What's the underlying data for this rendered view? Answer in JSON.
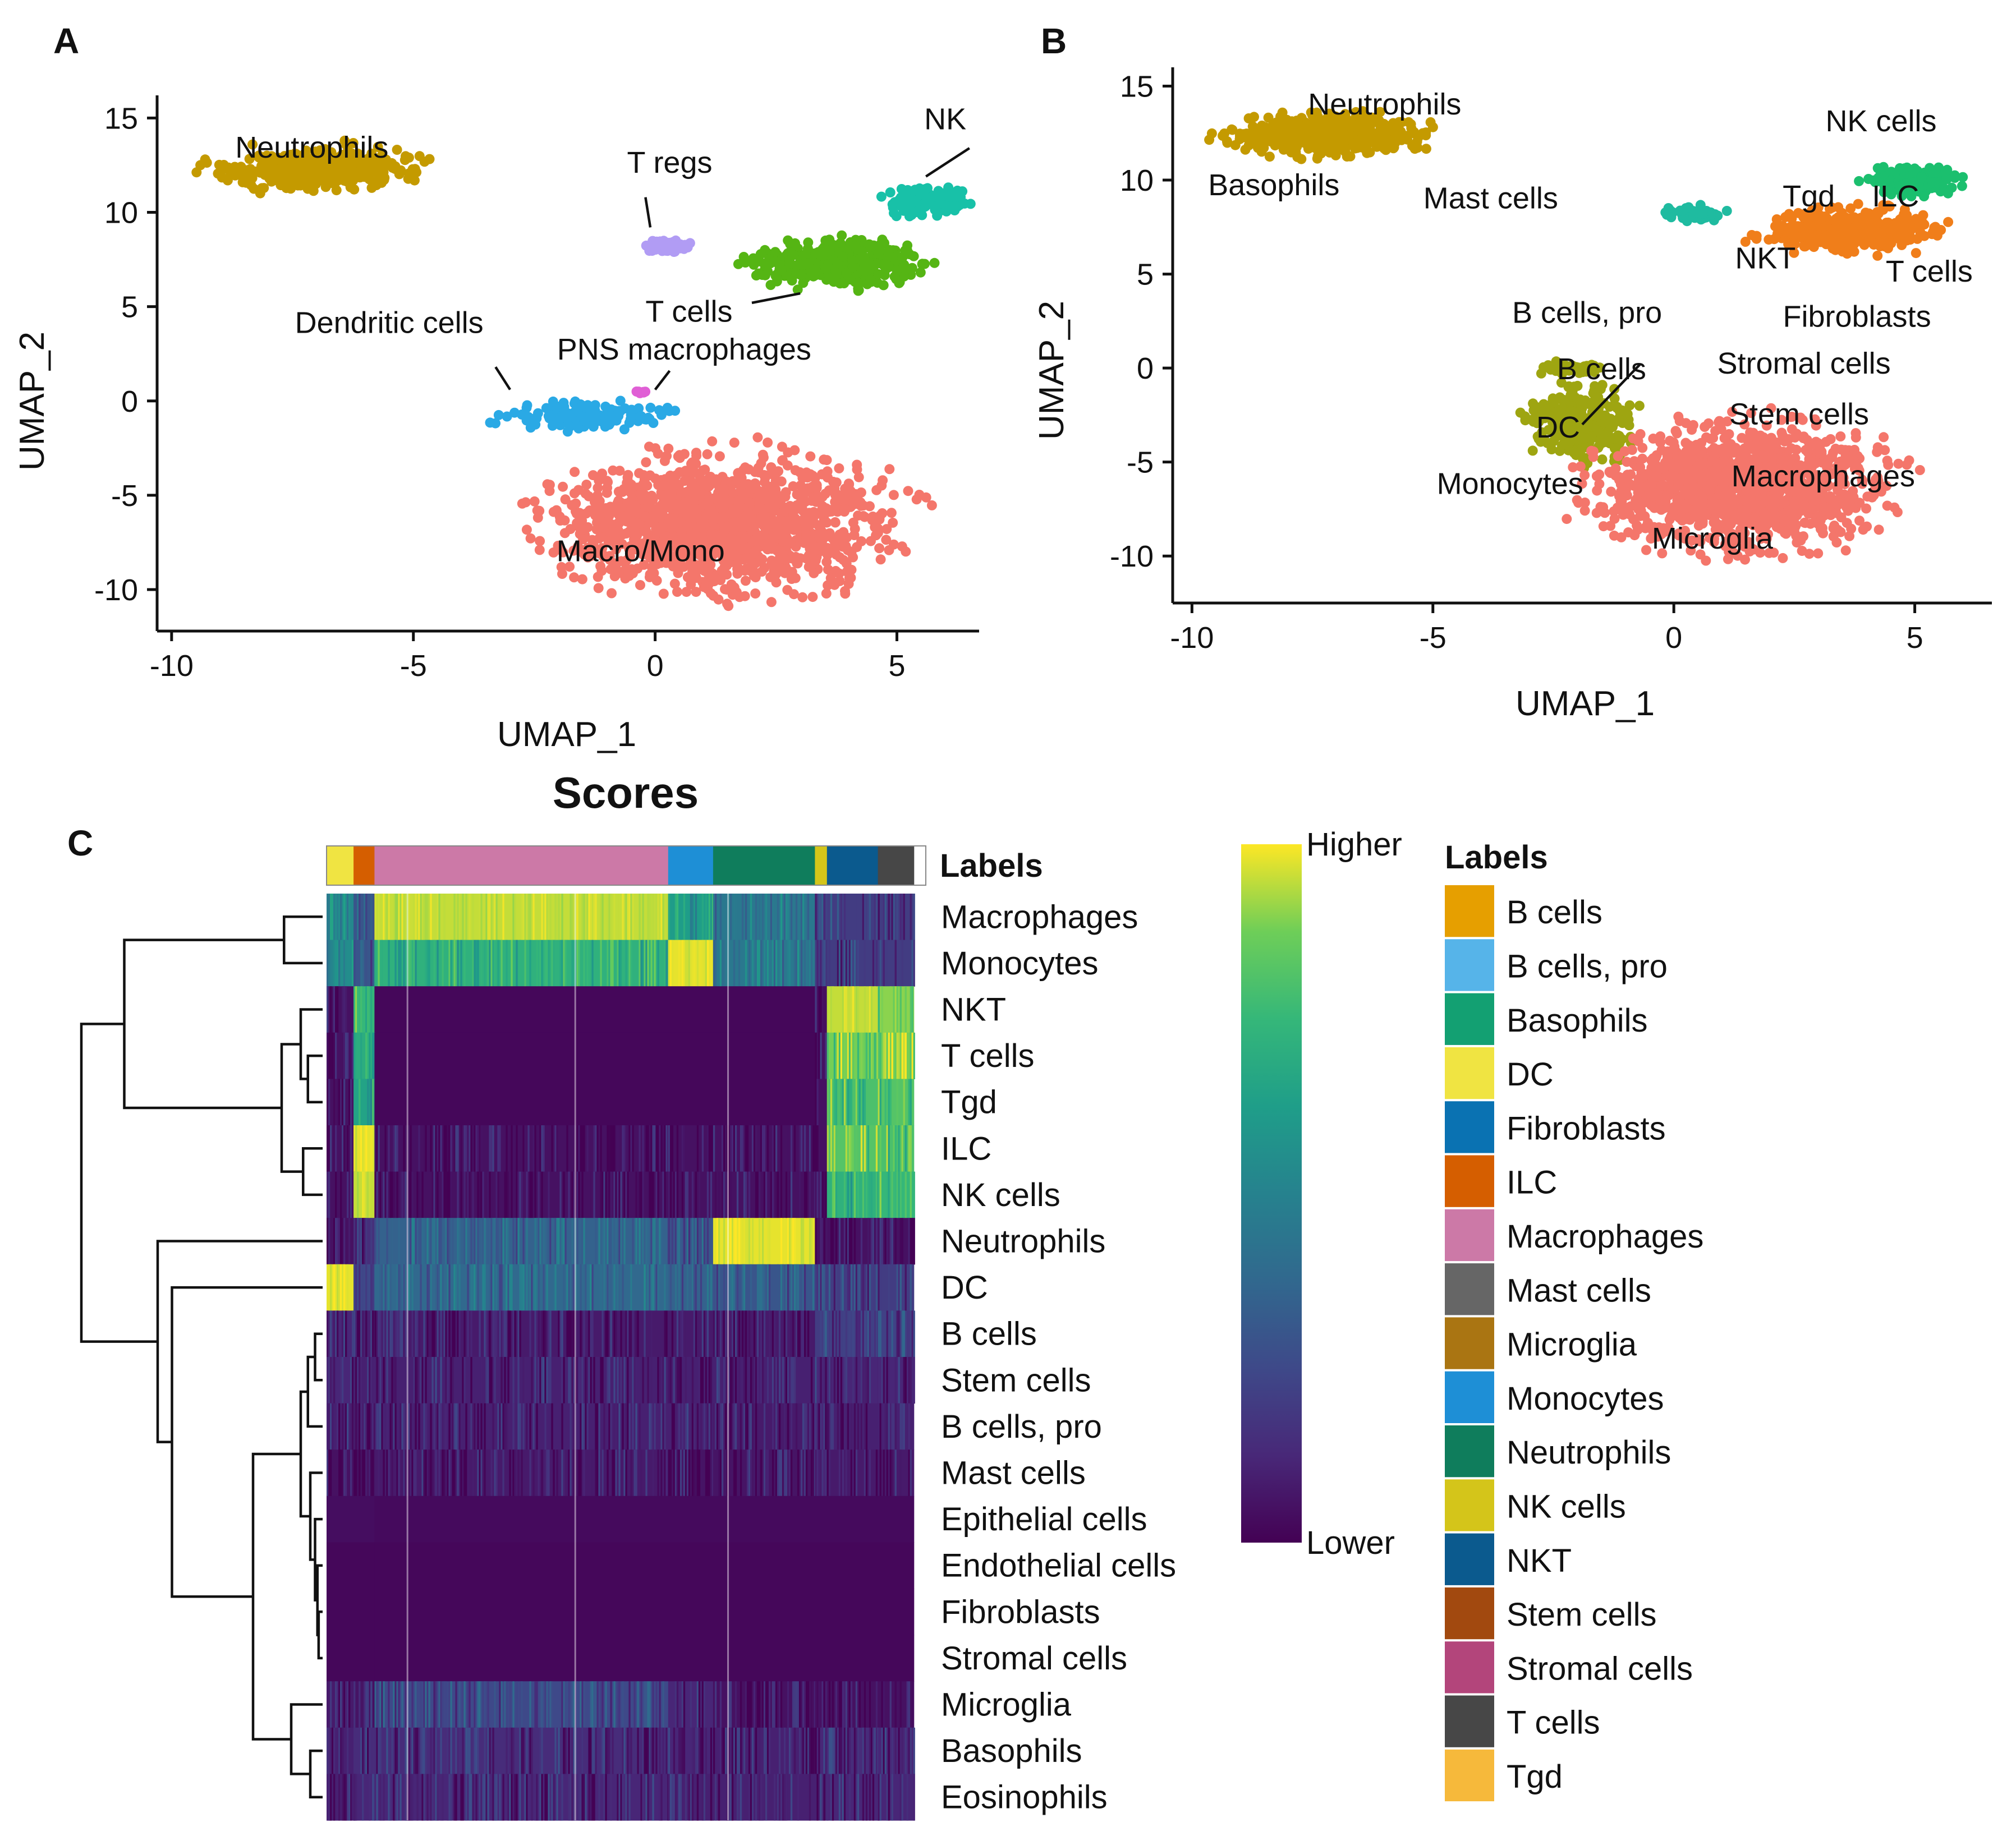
{
  "panels": {
    "a": "A",
    "b": "B",
    "c": "C"
  },
  "chart_data": [
    {
      "type": "scatter",
      "panel": "A",
      "xlabel": "UMAP_1",
      "ylabel": "UMAP_2",
      "xlim": [
        -10.3,
        6.7
      ],
      "ylim": [
        -12.2,
        16.2
      ],
      "xticks": [
        -10,
        -5,
        0,
        5
      ],
      "yticks": [
        15,
        10,
        5,
        0,
        -5,
        -10
      ],
      "clusters": [
        {
          "name": "Neutrophils",
          "color": "#c49a00",
          "label": "Neutrophils",
          "shape": "blob",
          "cx": -7.0,
          "cy": 12.3,
          "rx": 2.6,
          "ry": 1.4,
          "n": 420,
          "label_x": -7.1,
          "label_y": 12.9
        },
        {
          "name": "T regs",
          "color": "#b19cf4",
          "label": "T regs",
          "shape": "blob",
          "cx": 0.3,
          "cy": 8.2,
          "rx": 0.6,
          "ry": 0.45,
          "n": 60,
          "label_x": 0.3,
          "label_y": 12.1,
          "leader": [
            -0.2,
            10.8,
            -0.1,
            9.2
          ]
        },
        {
          "name": "T cells",
          "color": "#55b514",
          "label": "T cells",
          "shape": "blob",
          "cx": 3.8,
          "cy": 7.3,
          "rx": 2.2,
          "ry": 1.5,
          "n": 400,
          "label_x": 0.7,
          "label_y": 4.2,
          "leader": [
            2.0,
            5.2,
            3.0,
            5.7
          ]
        },
        {
          "name": "NK",
          "color": "#18c1a8",
          "label": "NK",
          "shape": "blob",
          "cx": 5.6,
          "cy": 10.6,
          "rx": 1.1,
          "ry": 1.0,
          "n": 120,
          "label_x": 6.0,
          "label_y": 14.4,
          "leader": [
            6.5,
            13.4,
            5.6,
            11.9
          ]
        },
        {
          "name": "Dendritic cells",
          "color": "#2aa9e5",
          "label": "Dendritic cells",
          "shape": "blob",
          "cx": -1.4,
          "cy": -0.8,
          "rx": 2.0,
          "ry": 0.9,
          "n": 160,
          "label_x": -5.5,
          "label_y": 3.6,
          "leader": [
            -3.3,
            1.8,
            -3.0,
            0.6
          ]
        },
        {
          "name": "PNS macrophages",
          "color": "#e05fd5",
          "label": "PNS macrophages",
          "shape": "blob",
          "cx": -0.3,
          "cy": 0.5,
          "rx": 0.15,
          "ry": 0.2,
          "n": 6,
          "label_x": 0.6,
          "label_y": 2.2,
          "leader": [
            0.3,
            1.6,
            0.0,
            0.6
          ]
        },
        {
          "name": "Macro/Mono",
          "color": "#f4766b",
          "label": "Macro/Mono",
          "shape": "blob",
          "cx": 1.4,
          "cy": -6.6,
          "rx": 4.2,
          "ry": 4.6,
          "n": 1400,
          "label_x": -0.3,
          "label_y": -8.5
        }
      ]
    },
    {
      "type": "scatter",
      "panel": "B",
      "xlabel": "UMAP_1",
      "ylabel": "UMAP_2",
      "xlim": [
        -10.4,
        6.6
      ],
      "ylim": [
        -12.5,
        16.0
      ],
      "xticks": [
        -10,
        -5,
        0,
        5
      ],
      "yticks": [
        15,
        10,
        5,
        0,
        -5,
        -10
      ],
      "clusters": [
        {
          "name": "Neutrophils",
          "color": "#c49a00",
          "shape": "blob",
          "cx": -7.2,
          "cy": 12.4,
          "rx": 2.6,
          "ry": 1.4,
          "n": 420
        },
        {
          "name": "T cells",
          "color": "#f07e1a",
          "shape": "blob",
          "cx": 3.7,
          "cy": 7.3,
          "rx": 2.2,
          "ry": 1.5,
          "n": 380
        },
        {
          "name": "NK cells",
          "color": "#1bbf6e",
          "shape": "blob",
          "cx": 5.0,
          "cy": 10.0,
          "rx": 1.2,
          "ry": 1.1,
          "n": 150
        },
        {
          "name": "ILC",
          "color": "#1fbba0",
          "shape": "blob",
          "cx": 0.4,
          "cy": 8.2,
          "rx": 0.7,
          "ry": 0.5,
          "n": 60
        },
        {
          "name": "Monocytes",
          "color": "#9ea511",
          "shape": "blob",
          "cx": -1.9,
          "cy": -3.0,
          "rx": 1.3,
          "ry": 2.5,
          "n": 260
        },
        {
          "name": "B cells, pro",
          "color": "#9ea511",
          "shape": "blob",
          "cx": -2.2,
          "cy": 0.0,
          "rx": 0.9,
          "ry": 0.4,
          "n": 50
        },
        {
          "name": "Microglia",
          "color": "#f4766b",
          "shape": "blob",
          "cx": 1.4,
          "cy": -6.4,
          "rx": 3.6,
          "ry": 4.2,
          "n": 1300
        }
      ],
      "labels": [
        {
          "text": "Neutrophils",
          "x": -6.0,
          "y": 13.5
        },
        {
          "text": "Basophils",
          "x": -8.3,
          "y": 9.2
        },
        {
          "text": "Mast cells",
          "x": -3.8,
          "y": 8.5
        },
        {
          "text": "NK cells",
          "x": 4.3,
          "y": 12.6
        },
        {
          "text": "Tgd",
          "x": 2.8,
          "y": 8.6
        },
        {
          "text": "ILC",
          "x": 4.6,
          "y": 8.6
        },
        {
          "text": "NKT",
          "x": 1.9,
          "y": 5.3
        },
        {
          "text": "T cells",
          "x": 5.3,
          "y": 4.6
        },
        {
          "text": "Fibroblasts",
          "x": 3.8,
          "y": 2.2
        },
        {
          "text": "B cells, pro",
          "x": -1.8,
          "y": 2.4
        },
        {
          "text": "Stromal cells",
          "x": 2.7,
          "y": -0.3
        },
        {
          "text": "B cells",
          "x": -1.5,
          "y": -0.6
        },
        {
          "text": "Stem cells",
          "x": 2.6,
          "y": -3.0
        },
        {
          "text": "DC",
          "x": -2.4,
          "y": -3.7
        },
        {
          "text": "Monocytes",
          "x": -3.4,
          "y": -6.7
        },
        {
          "text": "Macrophages",
          "x": 3.1,
          "y": -6.3
        },
        {
          "text": "Microglia",
          "x": 0.8,
          "y": -9.6
        }
      ],
      "leader": [
        -1.9,
        -3.0,
        -0.7,
        0.2
      ]
    },
    {
      "type": "heatmap",
      "panel": "C",
      "title": "Scores",
      "annotation_label": "Labels",
      "rows": [
        "Macrophages",
        "Monocytes",
        "NKT",
        "T cells",
        "Tgd",
        "ILC",
        "NK cells",
        "Neutrophils",
        "DC",
        "B cells",
        "Stem cells",
        "B cells, pro",
        "Mast cells",
        "Epithelial cells",
        "Endothelial cells",
        "Fibroblasts",
        "Stromal cells",
        "Microglia",
        "Basophils",
        "Eosinophils"
      ],
      "column_groups": [
        {
          "label": "DC",
          "fraction": 0.045
        },
        {
          "label": "ILC",
          "fraction": 0.035
        },
        {
          "label": "Macrophages",
          "fraction": 0.49
        },
        {
          "label": "Monocytes",
          "fraction": 0.075
        },
        {
          "label": "Neutrophils",
          "fraction": 0.17
        },
        {
          "label": "NK cells",
          "fraction": 0.02
        },
        {
          "label": "NKT",
          "fraction": 0.085
        },
        {
          "label": "T cells",
          "fraction": 0.06
        }
      ],
      "scores": [
        [
          0.55,
          0.3,
          0.95,
          0.62,
          0.45,
          0.2,
          0.2,
          0.2
        ],
        [
          0.55,
          0.3,
          0.72,
          0.98,
          0.45,
          0.2,
          0.2,
          0.2
        ],
        [
          0.05,
          0.75,
          0.02,
          0.02,
          0.02,
          0.05,
          0.95,
          0.9
        ],
        [
          0.05,
          0.7,
          0.02,
          0.02,
          0.02,
          0.05,
          0.88,
          0.88
        ],
        [
          0.05,
          0.65,
          0.02,
          0.02,
          0.02,
          0.05,
          0.8,
          0.82
        ],
        [
          0.05,
          0.98,
          0.05,
          0.05,
          0.05,
          0.05,
          0.82,
          0.8
        ],
        [
          0.05,
          0.95,
          0.05,
          0.05,
          0.05,
          0.05,
          0.72,
          0.75
        ],
        [
          0.05,
          0.15,
          0.35,
          0.3,
          0.98,
          0.05,
          0.05,
          0.05
        ],
        [
          0.98,
          0.25,
          0.38,
          0.35,
          0.3,
          0.2,
          0.2,
          0.2
        ],
        [
          0.12,
          0.1,
          0.08,
          0.08,
          0.08,
          0.2,
          0.22,
          0.22
        ],
        [
          0.12,
          0.1,
          0.1,
          0.1,
          0.1,
          0.12,
          0.12,
          0.12
        ],
        [
          0.1,
          0.08,
          0.1,
          0.1,
          0.08,
          0.1,
          0.1,
          0.1
        ],
        [
          0.05,
          0.05,
          0.08,
          0.06,
          0.06,
          0.08,
          0.08,
          0.08
        ],
        [
          0.04,
          0.04,
          0.03,
          0.03,
          0.03,
          0.03,
          0.03,
          0.03
        ],
        [
          0.02,
          0.02,
          0.02,
          0.02,
          0.02,
          0.02,
          0.02,
          0.02
        ],
        [
          0.02,
          0.02,
          0.02,
          0.02,
          0.02,
          0.02,
          0.02,
          0.02
        ],
        [
          0.02,
          0.02,
          0.02,
          0.02,
          0.02,
          0.02,
          0.02,
          0.02
        ],
        [
          0.08,
          0.06,
          0.25,
          0.12,
          0.05,
          0.05,
          0.05,
          0.05
        ],
        [
          0.1,
          0.14,
          0.14,
          0.12,
          0.1,
          0.12,
          0.14,
          0.12
        ],
        [
          0.1,
          0.12,
          0.12,
          0.1,
          0.1,
          0.1,
          0.12,
          0.12
        ]
      ],
      "dendrogram": {
        "description": "hierarchical clustering of rows",
        "merges": [
          {
            "a": "Macrophages",
            "b": "Monocytes",
            "height": 0.15
          },
          {
            "a": "T cells",
            "b": "Tgd",
            "height": 0.05
          },
          {
            "a": "NKT",
            "b": "T cells+Tgd",
            "height": 0.08
          },
          {
            "a": "ILC",
            "b": "NK cells",
            "height": 0.07
          },
          {
            "a": "NKT+T cells+Tgd",
            "b": "ILC+NK cells",
            "height": 0.14
          },
          {
            "a": "Mac+Mono",
            "b": "NKT..NK",
            "height": 0.82
          },
          {
            "a": "Microglia",
            "b": "Basophils+Eosinophils",
            "height": 0.12
          },
          {
            "a": "B cells",
            "b": "Stem cells",
            "height": 0.04
          },
          {
            "a": "B+Stem",
            "b": "B cells, pro",
            "height": 0.06
          },
          {
            "a": "Epithelial..Stromal",
            "b": "Mast cells",
            "height": 0.05
          },
          {
            "a": "B group",
            "b": "Mast group",
            "height": 0.1
          },
          {
            "a": "B+Mast group",
            "b": "Microglia group",
            "height": 0.28
          },
          {
            "a": "DC",
            "b": "lower group",
            "height": 0.62
          },
          {
            "a": "Neutrophils",
            "b": "DC+lower group",
            "height": 0.68
          },
          {
            "a": "top group",
            "b": "bottom group",
            "height": 1.0
          }
        ]
      },
      "colorbar": {
        "high_label": "Higher",
        "low_label": "Lower"
      },
      "legend": {
        "title": "Labels",
        "items": [
          {
            "label": "B cells",
            "color": "#e69f00"
          },
          {
            "label": "B cells, pro",
            "color": "#56b4e9"
          },
          {
            "label": "Basophils",
            "color": "#13a072"
          },
          {
            "label": "DC",
            "color": "#f0e442"
          },
          {
            "label": "Fibroblasts",
            "color": "#0a72b2"
          },
          {
            "label": "ILC",
            "color": "#d55e00"
          },
          {
            "label": "Macrophages",
            "color": "#cc79a7"
          },
          {
            "label": "Mast cells",
            "color": "#666666"
          },
          {
            "label": "Microglia",
            "color": "#aa7512"
          },
          {
            "label": "Monocytes",
            "color": "#1e8fd6"
          },
          {
            "label": "Neutrophils",
            "color": "#0f7d5c"
          },
          {
            "label": "NK cells",
            "color": "#d4c51a"
          },
          {
            "label": "NKT",
            "color": "#0b5a8e"
          },
          {
            "label": "Stem cells",
            "color": "#a2490f"
          },
          {
            "label": "Stromal cells",
            "color": "#b3457b"
          },
          {
            "label": "T cells",
            "color": "#474747"
          },
          {
            "label": "Tgd",
            "color": "#f6b93b"
          }
        ]
      },
      "annotation_colors": [
        "#f0e442",
        "#d55e00",
        "#cc79a7",
        "#1e8fd6",
        "#0f7d5c",
        "#d4c51a",
        "#0b5a8e",
        "#474747"
      ]
    }
  ]
}
